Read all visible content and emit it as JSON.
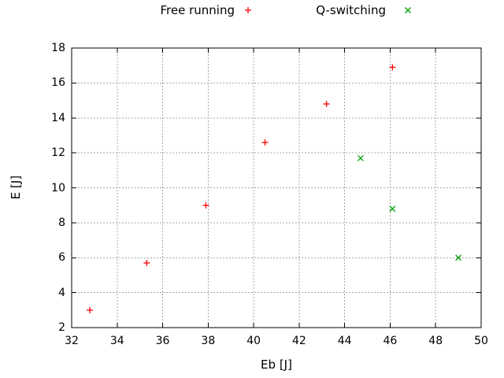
{
  "legend": {
    "items": [
      {
        "label": "Free running",
        "marker": "plus",
        "color": "#ff0000"
      },
      {
        "label": "Q-switching",
        "marker": "cross",
        "color": "#00a000"
      }
    ]
  },
  "chart_data": {
    "type": "scatter",
    "title": "",
    "xlabel": "Eb [J]",
    "ylabel": "E [J]",
    "xlim": [
      32,
      50
    ],
    "ylim": [
      2,
      18
    ],
    "x_ticks": [
      32,
      34,
      36,
      38,
      40,
      42,
      44,
      46,
      48,
      50
    ],
    "y_ticks": [
      2,
      4,
      6,
      8,
      10,
      12,
      14,
      16,
      18
    ],
    "grid": true,
    "grid_style": "dashed",
    "legend_position": "top-center-horizontal",
    "series": [
      {
        "name": "Free running",
        "marker": "plus",
        "color": "#ff0000",
        "points": [
          [
            32.8,
            3.0
          ],
          [
            35.3,
            5.7
          ],
          [
            37.9,
            9.0
          ],
          [
            40.5,
            12.6
          ],
          [
            43.2,
            14.8
          ],
          [
            46.1,
            16.9
          ]
        ]
      },
      {
        "name": "Q-switching",
        "marker": "cross",
        "color": "#00a000",
        "points": [
          [
            44.7,
            11.7
          ],
          [
            46.1,
            8.8
          ],
          [
            49.0,
            6.0
          ]
        ]
      }
    ]
  },
  "colors": {
    "background": "#ffffff",
    "axis": "#000000",
    "grid": "#a8a8a8",
    "text": "#000000"
  }
}
